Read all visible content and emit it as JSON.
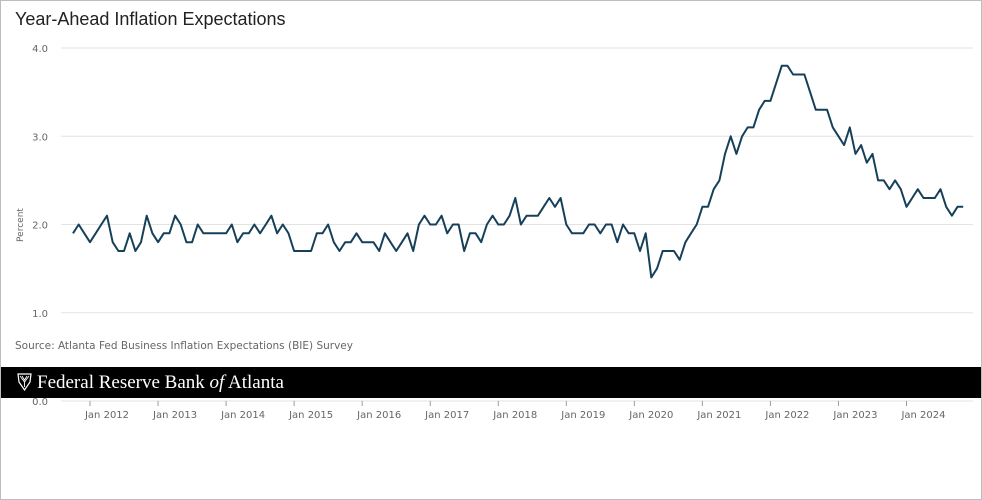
{
  "title": "Year-Ahead Inflation Expectations",
  "source": "Source: Atlanta Fed Business Inflation Expectations (BIE) Survey",
  "brand": {
    "name_part1": "Federal Reserve Bank ",
    "name_italic": "of",
    "name_part2": " Atlanta",
    "logo_icon": "eagle-shield-icon"
  },
  "colors": {
    "line": "#16405a",
    "grid": "#e3e3e3",
    "banner": "#000000"
  },
  "chart_data": {
    "type": "line",
    "title": "Year-Ahead Inflation Expectations",
    "ylabel": "Percent",
    "xlabel": "",
    "ylim": [
      0.0,
      4.0
    ],
    "yticks": [
      4.0,
      3.0,
      2.0,
      1.0,
      0.0
    ],
    "ytick_labels": [
      "4.0",
      "3.0",
      "2.0",
      "1.0",
      "0.0"
    ],
    "xtick_labels": [
      "Jan 2012",
      "Jan 2013",
      "Jan 2014",
      "Jan 2015",
      "Jan 2016",
      "Jan 2017",
      "Jan 2018",
      "Jan 2019",
      "Jan 2020",
      "Jan 2021",
      "Jan 2022",
      "Jan 2023",
      "Jan 2024"
    ],
    "grid": true,
    "frequency": "monthly",
    "x_start": "2011-10",
    "series": [
      {
        "values": [
          1.9,
          2.0,
          1.9,
          1.8,
          1.9,
          2.0,
          2.1,
          1.8,
          1.7,
          1.7,
          1.9,
          1.7,
          1.8,
          2.1,
          1.9,
          1.8,
          1.9,
          1.9,
          2.1,
          2.0,
          1.8,
          1.8,
          2.0,
          1.9,
          1.9,
          1.9,
          1.9,
          1.9,
          2.0,
          1.8,
          1.9,
          1.9,
          2.0,
          1.9,
          2.0,
          2.1,
          1.9,
          2.0,
          1.9,
          1.7,
          1.7,
          1.7,
          1.7,
          1.9,
          1.9,
          2.0,
          1.8,
          1.7,
          1.8,
          1.8,
          1.9,
          1.8,
          1.8,
          1.8,
          1.7,
          1.9,
          1.8,
          1.7,
          1.8,
          1.9,
          1.7,
          2.0,
          2.1,
          2.0,
          2.0,
          2.1,
          1.9,
          2.0,
          2.0,
          1.7,
          1.9,
          1.9,
          1.8,
          2.0,
          2.1,
          2.0,
          2.0,
          2.1,
          2.3,
          2.0,
          2.1,
          2.1,
          2.1,
          2.2,
          2.3,
          2.2,
          2.3,
          2.0,
          1.9,
          1.9,
          1.9,
          2.0,
          2.0,
          1.9,
          2.0,
          2.0,
          1.8,
          2.0,
          1.9,
          1.9,
          1.7,
          1.9,
          1.4,
          1.5,
          1.7,
          1.7,
          1.7,
          1.6,
          1.8,
          1.9,
          2.0,
          2.2,
          2.2,
          2.4,
          2.5,
          2.8,
          3.0,
          2.8,
          3.0,
          3.1,
          3.1,
          3.3,
          3.4,
          3.4,
          3.6,
          3.8,
          3.8,
          3.7,
          3.7,
          3.7,
          3.5,
          3.3,
          3.3,
          3.3,
          3.1,
          3.0,
          2.9,
          3.1,
          2.8,
          2.9,
          2.7,
          2.8,
          2.5,
          2.5,
          2.4,
          2.5,
          2.4,
          2.2,
          2.3,
          2.4,
          2.3,
          2.3,
          2.3,
          2.4,
          2.2,
          2.1,
          2.2,
          2.2
        ]
      }
    ]
  }
}
